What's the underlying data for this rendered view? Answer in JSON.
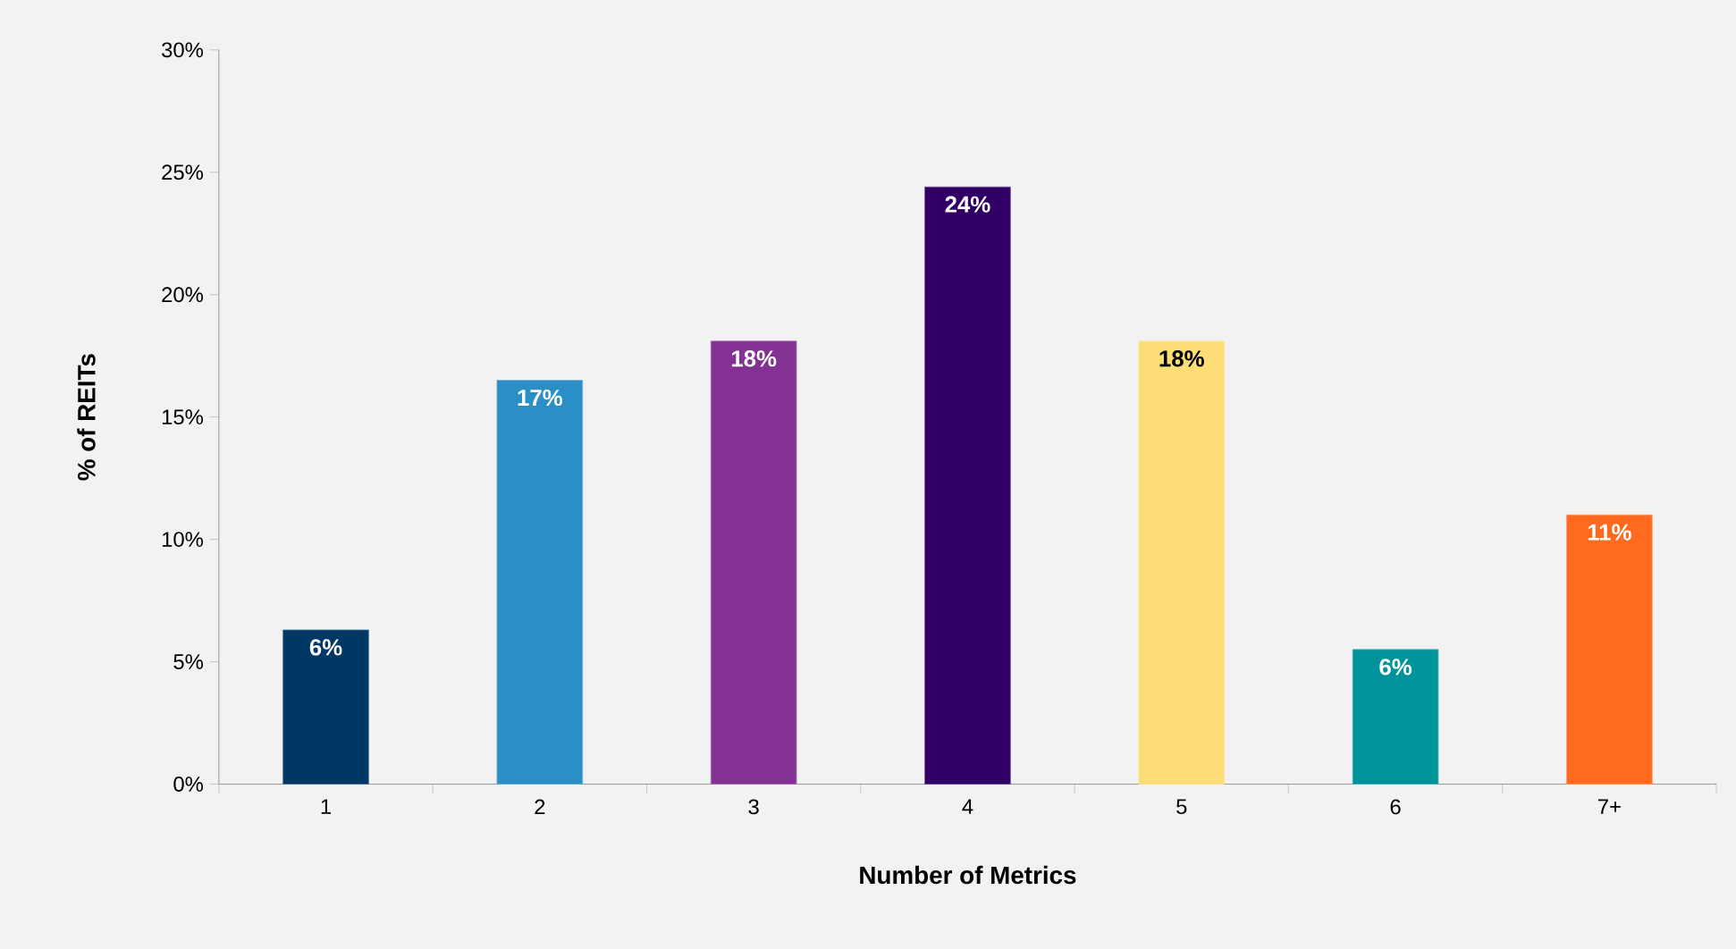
{
  "chart_data": {
    "type": "bar",
    "xlabel": "Number of Metrics",
    "ylabel": "% of REITs",
    "categories": [
      "1",
      "2",
      "3",
      "4",
      "5",
      "6",
      "7+"
    ],
    "values": [
      6.3,
      16.5,
      18.1,
      24.4,
      18.1,
      5.5,
      11.0
    ],
    "value_labels": [
      "6%",
      "17%",
      "18%",
      "24%",
      "18%",
      "6%",
      "11%"
    ],
    "colors": [
      "#003865",
      "#2a8fc6",
      "#833293",
      "#300066",
      "#fddd76",
      "#00939b",
      "#ff6a1f"
    ],
    "ylim": [
      0,
      30
    ],
    "yticks": [
      {
        "value": 0,
        "label": "0%"
      },
      {
        "value": 5,
        "label": "5%"
      },
      {
        "value": 10,
        "label": "10%"
      },
      {
        "value": 15,
        "label": "15%"
      },
      {
        "value": 20,
        "label": "20%"
      },
      {
        "value": 25,
        "label": "25%"
      },
      {
        "value": 30,
        "label": "30%"
      }
    ],
    "grid": false
  }
}
